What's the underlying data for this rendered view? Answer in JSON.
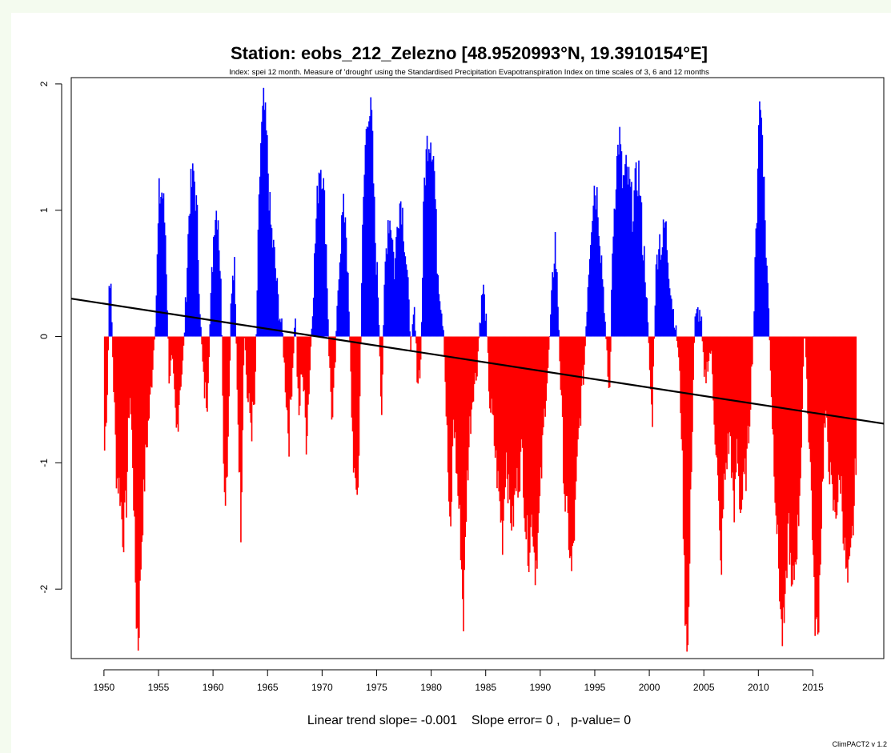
{
  "chart_data": {
    "type": "bar",
    "title": "Station: eobs_212_Zelezno [48.9520993°N, 19.3910154°E]",
    "subtitle": "Index: spei 12 month. Measure of 'drought' using the Standardised Precipitation Evapotranspiration Index on time scales of 3, 6 and 12 months",
    "footnote": "Linear trend slope= -0.001    Slope error= 0 ,   p-value= 0",
    "version_label": "ClimPACT2 v 1.2",
    "x_ticks": [
      1950,
      1955,
      1960,
      1965,
      1970,
      1975,
      1980,
      1985,
      1990,
      1995,
      2000,
      2005,
      2010,
      2015
    ],
    "y_ticks": [
      -2,
      -1,
      0,
      1,
      2
    ],
    "xlim": [
      1947,
      2021.5
    ],
    "ylim": [
      -2.55,
      2.05
    ],
    "positive_color": "#0000ff",
    "negative_color": "#ff0000",
    "trend_color": "#000000",
    "trend_line": {
      "x": [
        1947,
        2021.5
      ],
      "y": [
        0.3,
        -0.69
      ]
    },
    "series_start": 1950.0,
    "series_step": 0.0833,
    "anchors": [
      [
        1950.0,
        -0.9
      ],
      [
        1950.3,
        -0.3
      ],
      [
        1950.45,
        0.6
      ],
      [
        1950.6,
        0.3
      ],
      [
        1950.8,
        -0.3
      ],
      [
        1951.1,
        -1.1
      ],
      [
        1951.4,
        -1.2
      ],
      [
        1951.7,
        -1.6
      ],
      [
        1952.0,
        -1.3
      ],
      [
        1952.3,
        -0.4
      ],
      [
        1952.6,
        -1.0
      ],
      [
        1952.9,
        -2.2
      ],
      [
        1953.1,
        -2.45
      ],
      [
        1953.4,
        -1.6
      ],
      [
        1953.8,
        -0.9
      ],
      [
        1954.2,
        -0.5
      ],
      [
        1954.5,
        -0.1
      ],
      [
        1954.7,
        0.2
      ],
      [
        1955.0,
        1.1
      ],
      [
        1955.3,
        1.15
      ],
      [
        1955.6,
        0.8
      ],
      [
        1955.9,
        -0.3
      ],
      [
        1956.2,
        -0.2
      ],
      [
        1956.6,
        -0.8
      ],
      [
        1956.9,
        -0.4
      ],
      [
        1957.2,
        -0.2
      ],
      [
        1957.5,
        0.4
      ],
      [
        1957.8,
        1.1
      ],
      [
        1958.2,
        1.3
      ],
      [
        1958.5,
        0.9
      ],
      [
        1958.8,
        0.1
      ],
      [
        1959.1,
        -0.4
      ],
      [
        1959.4,
        -0.5
      ],
      [
        1959.8,
        0.4
      ],
      [
        1960.1,
        1.0
      ],
      [
        1960.4,
        1.0
      ],
      [
        1960.7,
        0.3
      ],
      [
        1961.0,
        -1.3
      ],
      [
        1961.3,
        -0.9
      ],
      [
        1961.6,
        0.3
      ],
      [
        1961.9,
        0.55
      ],
      [
        1962.2,
        -0.5
      ],
      [
        1962.5,
        -1.5
      ],
      [
        1962.8,
        0.1
      ],
      [
        1963.1,
        -0.5
      ],
      [
        1963.5,
        -0.7
      ],
      [
        1963.8,
        -0.5
      ],
      [
        1964.0,
        0.4
      ],
      [
        1964.3,
        1.5
      ],
      [
        1964.6,
        1.85
      ],
      [
        1964.9,
        1.5
      ],
      [
        1965.2,
        0.9
      ],
      [
        1965.6,
        0.6
      ],
      [
        1966.0,
        0.2
      ],
      [
        1966.3,
        0.05
      ],
      [
        1966.6,
        -0.4
      ],
      [
        1966.9,
        -0.8
      ],
      [
        1967.2,
        -0.3
      ],
      [
        1967.5,
        0.2
      ],
      [
        1967.8,
        -0.7
      ],
      [
        1968.1,
        -0.2
      ],
      [
        1968.5,
        -0.8
      ],
      [
        1968.8,
        -0.3
      ],
      [
        1969.1,
        0.3
      ],
      [
        1969.4,
        0.9
      ],
      [
        1969.7,
        1.4
      ],
      [
        1970.0,
        1.3
      ],
      [
        1970.3,
        0.8
      ],
      [
        1970.6,
        -0.2
      ],
      [
        1970.9,
        -0.7
      ],
      [
        1971.2,
        -0.1
      ],
      [
        1971.5,
        0.6
      ],
      [
        1971.8,
        0.95
      ],
      [
        1972.1,
        1.0
      ],
      [
        1972.4,
        0.2
      ],
      [
        1972.7,
        -0.7
      ],
      [
        1973.0,
        -1.3
      ],
      [
        1973.3,
        -1.1
      ],
      [
        1973.6,
        0.6
      ],
      [
        1973.9,
        1.5
      ],
      [
        1974.2,
        1.85
      ],
      [
        1974.5,
        1.7
      ],
      [
        1974.8,
        0.8
      ],
      [
        1975.1,
        0.3
      ],
      [
        1975.4,
        -0.6
      ],
      [
        1975.7,
        0.5
      ],
      [
        1976.0,
        0.95
      ],
      [
        1976.3,
        0.9
      ],
      [
        1976.6,
        0.5
      ],
      [
        1976.9,
        1.0
      ],
      [
        1977.2,
        1.1
      ],
      [
        1977.5,
        0.8
      ],
      [
        1977.8,
        0.4
      ],
      [
        1978.1,
        -0.1
      ],
      [
        1978.4,
        0.2
      ],
      [
        1978.7,
        -0.35
      ],
      [
        1979.0,
        -0.2
      ],
      [
        1979.3,
        1.2
      ],
      [
        1979.6,
        1.55
      ],
      [
        1979.9,
        1.6
      ],
      [
        1980.2,
        1.4
      ],
      [
        1980.5,
        0.6
      ],
      [
        1980.8,
        0.3
      ],
      [
        1981.1,
        0.05
      ],
      [
        1981.4,
        -0.8
      ],
      [
        1981.7,
        -1.7
      ],
      [
        1982.0,
        -0.6
      ],
      [
        1982.3,
        -1.1
      ],
      [
        1982.6,
        -1.5
      ],
      [
        1982.9,
        -2.25
      ],
      [
        1983.2,
        -1.2
      ],
      [
        1983.5,
        -0.7
      ],
      [
        1983.8,
        -0.4
      ],
      [
        1984.1,
        -0.3
      ],
      [
        1984.4,
        0.1
      ],
      [
        1984.7,
        0.4
      ],
      [
        1985.0,
        0.1
      ],
      [
        1985.3,
        -0.5
      ],
      [
        1985.6,
        -0.7
      ],
      [
        1985.9,
        -1.0
      ],
      [
        1986.2,
        -1.3
      ],
      [
        1986.5,
        -1.6
      ],
      [
        1986.8,
        -0.9
      ],
      [
        1987.1,
        -1.3
      ],
      [
        1987.4,
        -1.5
      ],
      [
        1987.7,
        -1.2
      ],
      [
        1988.0,
        -1.1
      ],
      [
        1988.3,
        -0.9
      ],
      [
        1988.6,
        -1.5
      ],
      [
        1988.9,
        -1.7
      ],
      [
        1989.2,
        -1.4
      ],
      [
        1989.5,
        -1.85
      ],
      [
        1989.8,
        -1.5
      ],
      [
        1990.1,
        -1.0
      ],
      [
        1990.4,
        -0.5
      ],
      [
        1990.7,
        -0.2
      ],
      [
        1991.0,
        0.3
      ],
      [
        1991.3,
        0.8
      ],
      [
        1991.6,
        0.2
      ],
      [
        1991.9,
        -0.6
      ],
      [
        1992.2,
        -1.3
      ],
      [
        1992.5,
        -1.5
      ],
      [
        1992.8,
        -1.9
      ],
      [
        1993.1,
        -1.5
      ],
      [
        1993.4,
        -0.9
      ],
      [
        1993.7,
        -0.5
      ],
      [
        1994.0,
        -0.2
      ],
      [
        1994.3,
        0.4
      ],
      [
        1994.6,
        0.9
      ],
      [
        1994.9,
        1.2
      ],
      [
        1995.2,
        1.1
      ],
      [
        1995.5,
        0.7
      ],
      [
        1995.8,
        0.3
      ],
      [
        1996.0,
        -0.1
      ],
      [
        1996.3,
        -0.5
      ],
      [
        1996.6,
        0.8
      ],
      [
        1996.9,
        1.3
      ],
      [
        1997.2,
        1.6
      ],
      [
        1997.5,
        1.2
      ],
      [
        1997.8,
        1.3
      ],
      [
        1998.1,
        1.2
      ],
      [
        1998.4,
        1.0
      ],
      [
        1998.7,
        1.2
      ],
      [
        1999.0,
        1.3
      ],
      [
        1999.3,
        0.8
      ],
      [
        1999.6,
        0.5
      ],
      [
        1999.9,
        -0.1
      ],
      [
        2000.2,
        -0.7
      ],
      [
        2000.5,
        0.4
      ],
      [
        2000.8,
        0.8
      ],
      [
        2001.1,
        0.7
      ],
      [
        2001.4,
        0.9
      ],
      [
        2001.7,
        0.6
      ],
      [
        2002.0,
        0.3
      ],
      [
        2002.3,
        0.1
      ],
      [
        2002.6,
        -0.1
      ],
      [
        2002.9,
        -0.7
      ],
      [
        2003.2,
        -2.1
      ],
      [
        2003.5,
        -2.5
      ],
      [
        2003.8,
        -1.0
      ],
      [
        2004.1,
        0.1
      ],
      [
        2004.4,
        0.2
      ],
      [
        2004.7,
        0.15
      ],
      [
        2005.0,
        -0.4
      ],
      [
        2005.3,
        -0.2
      ],
      [
        2005.6,
        -0.1
      ],
      [
        2005.9,
        -0.6
      ],
      [
        2006.2,
        -1.1
      ],
      [
        2006.5,
        -1.9
      ],
      [
        2006.8,
        -1.2
      ],
      [
        2007.1,
        -0.9
      ],
      [
        2007.4,
        -0.8
      ],
      [
        2007.7,
        -1.5
      ],
      [
        2008.0,
        -0.8
      ],
      [
        2008.3,
        -1.4
      ],
      [
        2008.6,
        -1.2
      ],
      [
        2008.9,
        -1.0
      ],
      [
        2009.2,
        -0.5
      ],
      [
        2009.5,
        0.05
      ],
      [
        2009.8,
        1.0
      ],
      [
        2010.0,
        1.85
      ],
      [
        2010.3,
        1.7
      ],
      [
        2010.6,
        0.8
      ],
      [
        2010.9,
        0.2
      ],
      [
        2011.2,
        -0.6
      ],
      [
        2011.5,
        -1.2
      ],
      [
        2011.8,
        -1.8
      ],
      [
        2012.1,
        -2.4
      ],
      [
        2012.4,
        -2.2
      ],
      [
        2012.7,
        -1.4
      ],
      [
        2013.0,
        -2.1
      ],
      [
        2013.3,
        -1.8
      ],
      [
        2013.6,
        -1.5
      ],
      [
        2013.9,
        -0.8
      ],
      [
        2014.2,
        0.1
      ],
      [
        2014.5,
        -0.6
      ],
      [
        2014.8,
        -1.2
      ],
      [
        2015.1,
        -2.2
      ],
      [
        2015.4,
        -2.4
      ],
      [
        2015.7,
        -1.5
      ],
      [
        2016.0,
        -0.7
      ],
      [
        2016.3,
        -0.8
      ],
      [
        2016.6,
        -1.2
      ],
      [
        2016.9,
        -1.4
      ],
      [
        2017.2,
        -1.3
      ],
      [
        2017.5,
        -1.1
      ],
      [
        2017.8,
        -1.6
      ],
      [
        2018.1,
        -2.0
      ],
      [
        2018.4,
        -1.8
      ],
      [
        2018.7,
        -1.4
      ],
      [
        2018.9,
        -0.9
      ]
    ]
  }
}
